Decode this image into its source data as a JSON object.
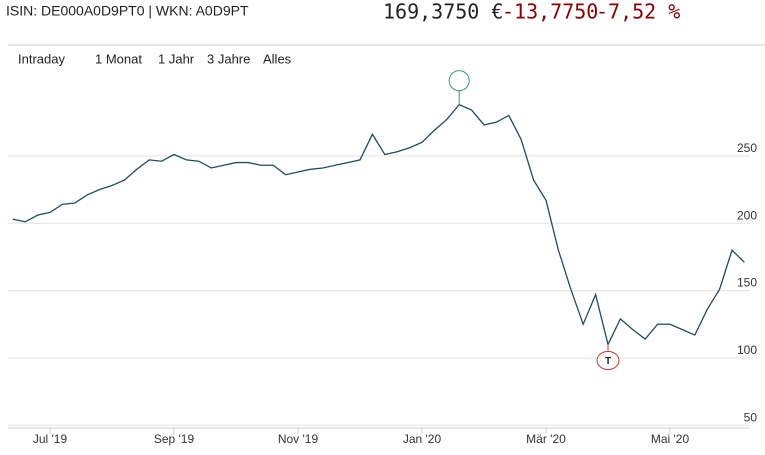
{
  "header": {
    "id": "ISIN: DE000A0D9PT0 | WKN: A0D9PT",
    "price": "169,3750 €",
    "change": "-13,7750",
    "change_pct": "-7,52 %"
  },
  "buttons": [
    "Intraday",
    "1 Monat",
    "1 Jahr",
    "3 Jahre",
    "Alles"
  ],
  "chart_data": {
    "type": "line",
    "color": "#1f4e5f",
    "grid": true,
    "categories": [
      null,
      null,
      null,
      "Jul '19",
      null,
      null,
      null,
      null,
      null,
      null,
      null,
      null,
      null,
      "Sep '19",
      null,
      null,
      null,
      null,
      null,
      null,
      null,
      null,
      null,
      "Nov '19",
      null,
      null,
      null,
      null,
      null,
      null,
      null,
      null,
      null,
      "Jan '20",
      null,
      null,
      null,
      null,
      null,
      null,
      null,
      null,
      null,
      "Mär '20",
      null,
      null,
      null,
      null,
      null,
      null,
      null,
      null,
      null,
      "Mai '20",
      null,
      null,
      null,
      null,
      null,
      null
    ],
    "values": [
      203,
      201,
      206,
      208,
      214,
      215,
      221,
      225,
      228,
      232,
      240,
      247,
      246,
      251,
      247,
      246,
      241,
      243,
      245,
      245,
      243,
      243,
      236,
      238,
      240,
      241,
      243,
      245,
      247,
      266,
      251,
      253,
      256,
      260,
      269,
      277,
      288,
      284,
      273,
      275,
      280,
      262,
      232,
      217,
      180,
      151,
      125,
      147,
      110,
      129,
      121,
      114,
      125,
      125,
      121,
      117,
      136,
      151,
      180,
      171
    ],
    "ylim": [
      48,
      310
    ],
    "yticks": [
      50,
      100,
      150,
      200,
      250
    ],
    "low_marker": "T"
  }
}
